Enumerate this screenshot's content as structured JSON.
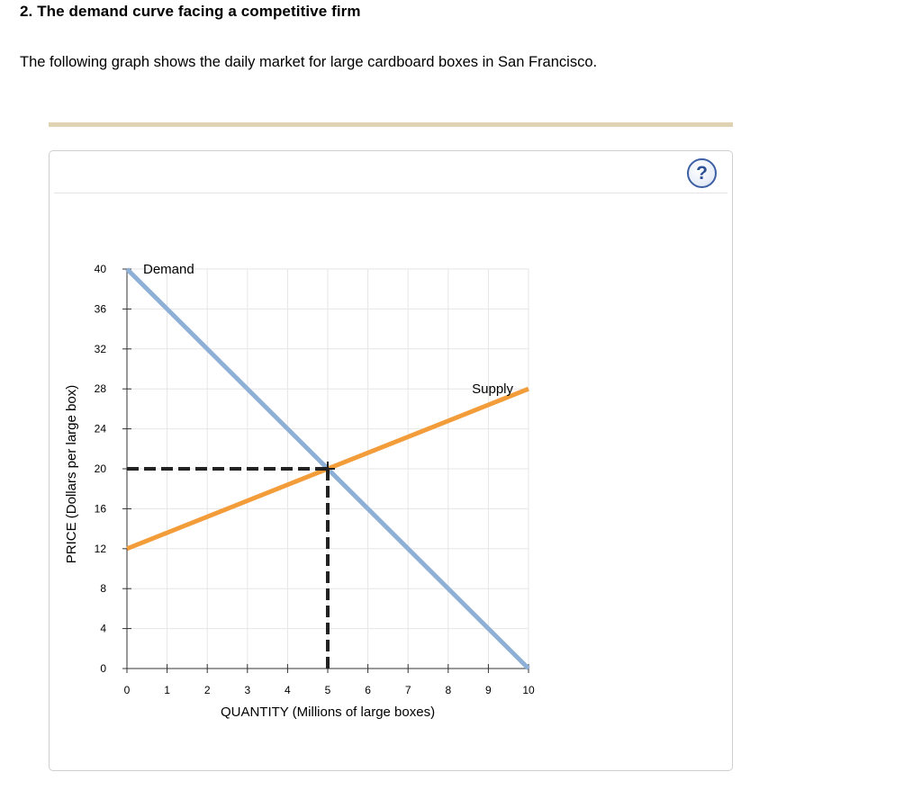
{
  "question": {
    "title": "2. The demand curve facing a competitive firm",
    "description": "The following graph shows the daily market for large cardboard boxes in San Francisco."
  },
  "help": {
    "label": "?"
  },
  "colors": {
    "demand": "#8eb0d6",
    "supply": "#f39c3a",
    "grid": "#e6e6e6",
    "axis": "#333333",
    "dashed": "#222222",
    "divider": "#e0d3b4"
  },
  "chart_data": {
    "type": "line",
    "xlabel": "QUANTITY (Millions of large boxes)",
    "ylabel": "PRICE (Dollars per large box)",
    "xlim": [
      0,
      10
    ],
    "ylim": [
      0,
      40
    ],
    "x_ticks": [
      0,
      1,
      2,
      3,
      4,
      5,
      6,
      7,
      8,
      9,
      10
    ],
    "y_ticks": [
      0,
      4,
      8,
      12,
      16,
      20,
      24,
      28,
      32,
      36,
      40
    ],
    "grid": true,
    "series": [
      {
        "name": "Demand",
        "x": [
          0,
          10
        ],
        "y": [
          40,
          0
        ],
        "color": "#8eb0d6"
      },
      {
        "name": "Supply",
        "x": [
          0,
          10
        ],
        "y": [
          12,
          28
        ],
        "color": "#f39c3a"
      }
    ],
    "equilibrium": {
      "x": 5,
      "y": 20
    }
  }
}
